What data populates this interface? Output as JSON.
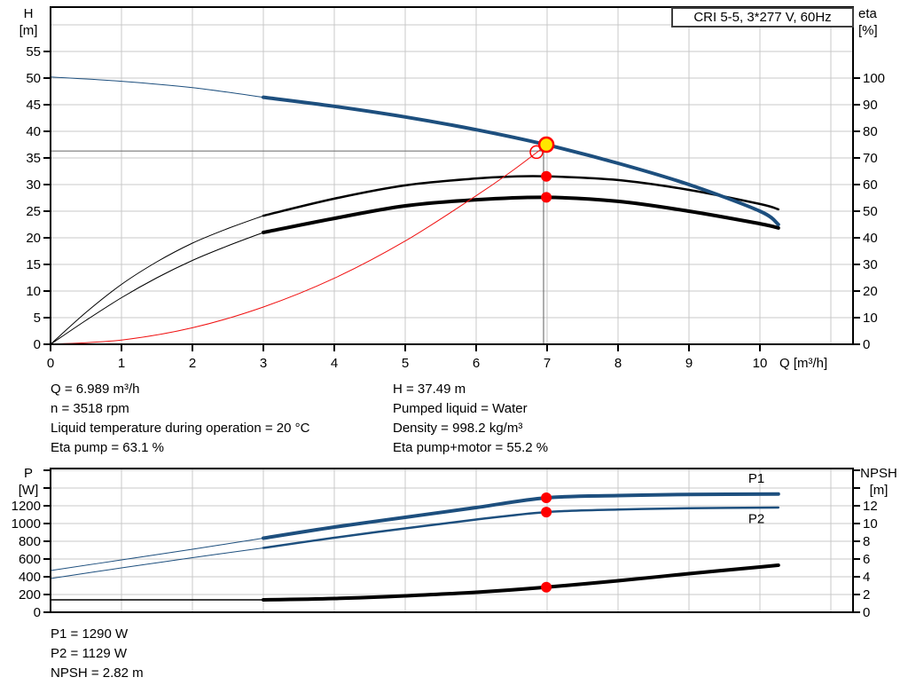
{
  "colors": {
    "curve_blue": "#1d4f7e",
    "curve_black": "#000000",
    "curve_red": "#f01010",
    "marker_red": "#ff0000",
    "marker_yellow": "#ffe600",
    "grid": "#c8c8c8",
    "frame": "#000000",
    "ref_line": "#787878",
    "text": "#000000"
  },
  "info_blocks": {
    "operating_point_left": [
      "Q = 6.989 m³/h",
      "n = 3518 rpm",
      "Liquid temperature during operation = 20 °C",
      "Eta pump = 63.1 %"
    ],
    "operating_point_right": [
      "H = 37.49 m",
      "Pumped liquid = Water",
      "Density = 998.2 kg/m³",
      "Eta pump+motor = 55.2 %"
    ],
    "power_block": [
      "P1 = 1290 W",
      "P2 = 1129 W",
      "NPSH = 2.82 m"
    ]
  },
  "chart_data": [
    {
      "name": "hq-eta-chart",
      "type": "line",
      "title": "CRI 5-5, 3*277 V, 60Hz",
      "x_axis": {
        "label": "Q [m³/h]",
        "min": 0,
        "max": 11.3125,
        "ticks": [
          {
            "v": 0,
            "t": "0"
          },
          {
            "v": 1,
            "t": "1"
          },
          {
            "v": 2,
            "t": "2"
          },
          {
            "v": 3,
            "t": "3"
          },
          {
            "v": 4,
            "t": "4"
          },
          {
            "v": 5,
            "t": "5"
          },
          {
            "v": 6,
            "t": "6"
          },
          {
            "v": 7,
            "t": "7"
          },
          {
            "v": 8,
            "t": "8"
          },
          {
            "v": 9,
            "t": "9"
          },
          {
            "v": 10,
            "t": "10"
          },
          {
            "v": 11,
            "t": ""
          }
        ],
        "marks_all": false
      },
      "left_axis": {
        "label": "H [m]",
        "label_lines": [
          "H",
          "[m]"
        ],
        "min": 0,
        "max": 63.333,
        "grid": true,
        "marks_all": false,
        "ticks": [
          {
            "v": 0,
            "t": "0"
          },
          {
            "v": 5,
            "t": "5"
          },
          {
            "v": 10,
            "t": "10"
          },
          {
            "v": 15,
            "t": "15"
          },
          {
            "v": 20,
            "t": "20"
          },
          {
            "v": 25,
            "t": "25"
          },
          {
            "v": 30,
            "t": "30"
          },
          {
            "v": 35,
            "t": "35"
          },
          {
            "v": 40,
            "t": "40"
          },
          {
            "v": 45,
            "t": "45"
          },
          {
            "v": 50,
            "t": "50"
          },
          {
            "v": 55,
            "t": "55"
          },
          {
            "v": 60,
            "t": ""
          }
        ]
      },
      "right_axis": {
        "label": "eta [%]",
        "label_lines": [
          "eta",
          "[%]"
        ],
        "min": 0,
        "max": 126.667,
        "grid": false,
        "marks_all": false,
        "ticks": [
          {
            "v": 0,
            "t": "0"
          },
          {
            "v": 10,
            "t": "10"
          },
          {
            "v": 20,
            "t": "20"
          },
          {
            "v": 30,
            "t": "30"
          },
          {
            "v": 40,
            "t": "40"
          },
          {
            "v": 50,
            "t": "50"
          },
          {
            "v": 60,
            "t": "60"
          },
          {
            "v": 70,
            "t": "70"
          },
          {
            "v": 80,
            "t": "80"
          },
          {
            "v": 90,
            "t": "90"
          },
          {
            "v": 100,
            "t": "100"
          }
        ]
      },
      "ref_lines": [
        {
          "type": "h",
          "axis": "left",
          "v": 36.3,
          "x1": 0,
          "x2": 6.95
        },
        {
          "type": "v",
          "axis": "left",
          "x": 6.95,
          "v1": 0,
          "v2": 37.3
        }
      ],
      "series": [
        {
          "name": "eta-pump-curve-low-flow",
          "axis": "right",
          "color": "curve_black",
          "width": 1,
          "points": [
            [
              0,
              0
            ],
            [
              0.5,
              12
            ],
            [
              1,
              22.5
            ],
            [
              1.5,
              31
            ],
            [
              2,
              38
            ],
            [
              2.5,
              43.5
            ],
            [
              3,
              48.3
            ]
          ]
        },
        {
          "name": "eta-pump-curve",
          "axis": "right",
          "color": "curve_black",
          "width": 2.5,
          "points": [
            [
              3,
              48.3
            ],
            [
              4,
              54.7
            ],
            [
              5,
              59.7
            ],
            [
              6,
              62.3
            ],
            [
              6.5,
              63
            ],
            [
              6.989,
              63.1
            ],
            [
              8,
              61.7
            ],
            [
              9,
              58
            ],
            [
              10,
              52.7
            ],
            [
              10.26,
              50.7
            ]
          ]
        },
        {
          "name": "eta-pump-motor-curve-low-flow",
          "axis": "right",
          "color": "curve_black",
          "width": 1,
          "points": [
            [
              0,
              0
            ],
            [
              0.5,
              9
            ],
            [
              1,
              17.5
            ],
            [
              1.5,
              25
            ],
            [
              2,
              31.5
            ],
            [
              2.5,
              37
            ],
            [
              3,
              42
            ]
          ]
        },
        {
          "name": "eta-pump-motor-curve",
          "axis": "right",
          "color": "curve_black",
          "width": 4,
          "points": [
            [
              3,
              42
            ],
            [
              4,
              47.3
            ],
            [
              5,
              52
            ],
            [
              6,
              54.3
            ],
            [
              6.989,
              55.2
            ],
            [
              8,
              53.7
            ],
            [
              9,
              50
            ],
            [
              10,
              45.3
            ],
            [
              10.26,
              43.7
            ]
          ]
        },
        {
          "name": "system-curve",
          "axis": "left",
          "color": "curve_red",
          "width": 1,
          "points": [
            [
              0,
              0
            ],
            [
              1,
              0.8
            ],
            [
              2,
              3.1
            ],
            [
              3,
              7.0
            ],
            [
              4,
              12.4
            ],
            [
              5,
              19.4
            ],
            [
              6,
              27.9
            ],
            [
              6.5,
              32.5
            ],
            [
              6.989,
              37.4
            ]
          ]
        },
        {
          "name": "head-curve-low-flow",
          "axis": "left",
          "color": "curve_blue",
          "width": 1,
          "points": [
            [
              0,
              50.2
            ],
            [
              1,
              49.4
            ],
            [
              2,
              48.2
            ],
            [
              3,
              46.4
            ]
          ]
        },
        {
          "name": "head-curve",
          "axis": "left",
          "color": "curve_blue",
          "width": 4,
          "points": [
            [
              3,
              46.4
            ],
            [
              4,
              44.7
            ],
            [
              5,
              42.7
            ],
            [
              6,
              40.3
            ],
            [
              6.989,
              37.49
            ],
            [
              8,
              34.0
            ],
            [
              9,
              30.0
            ],
            [
              10,
              25.0
            ],
            [
              10.26,
              22.5
            ]
          ]
        }
      ],
      "markers": [
        {
          "name": "requested-duty-point",
          "type": "open",
          "x": 6.85,
          "v": 36.1,
          "axis": "left",
          "r": 7
        },
        {
          "name": "operating-point",
          "type": "duty",
          "x": 6.989,
          "v": 37.49,
          "axis": "left",
          "r": 8
        },
        {
          "name": "eta-pump-point",
          "type": "dot",
          "x": 6.989,
          "v": 63.1,
          "axis": "right",
          "r": 6
        },
        {
          "name": "eta-pump-motor-point",
          "type": "dot",
          "x": 6.989,
          "v": 55.2,
          "axis": "right",
          "r": 6
        }
      ],
      "labels": []
    },
    {
      "name": "power-npsh-chart",
      "type": "line",
      "title": "",
      "x_axis": {
        "label": "",
        "min": 0,
        "max": 11.3125,
        "ticks": [
          {
            "v": 1,
            "t": ""
          },
          {
            "v": 2,
            "t": ""
          },
          {
            "v": 3,
            "t": ""
          },
          {
            "v": 4,
            "t": ""
          },
          {
            "v": 5,
            "t": ""
          },
          {
            "v": 6,
            "t": ""
          },
          {
            "v": 7,
            "t": ""
          },
          {
            "v": 8,
            "t": ""
          },
          {
            "v": 9,
            "t": ""
          },
          {
            "v": 10,
            "t": ""
          },
          {
            "v": 11,
            "t": ""
          }
        ],
        "marks_all": false
      },
      "left_axis": {
        "label": "P [W]",
        "label_lines": [
          "P",
          "[W]"
        ],
        "min": 0,
        "max": 1620,
        "grid": true,
        "marks_all": true,
        "ticks": [
          {
            "v": 0,
            "t": "0"
          },
          {
            "v": 200,
            "t": "200"
          },
          {
            "v": 400,
            "t": "400"
          },
          {
            "v": 600,
            "t": "600"
          },
          {
            "v": 800,
            "t": "800"
          },
          {
            "v": 1000,
            "t": "1000"
          },
          {
            "v": 1200,
            "t": "1200"
          },
          {
            "v": 1400,
            "t": ""
          },
          {
            "v": 1600,
            "t": ""
          }
        ]
      },
      "right_axis": {
        "label": "NPSH [m]",
        "label_lines": [
          "NPSH",
          "[m]"
        ],
        "min": 0,
        "max": 16.2,
        "grid": false,
        "marks_all": true,
        "ticks": [
          {
            "v": 0,
            "t": "0"
          },
          {
            "v": 2,
            "t": "2"
          },
          {
            "v": 4,
            "t": "4"
          },
          {
            "v": 6,
            "t": "6"
          },
          {
            "v": 8,
            "t": "8"
          },
          {
            "v": 10,
            "t": "10"
          },
          {
            "v": 12,
            "t": "12"
          },
          {
            "v": 14,
            "t": ""
          },
          {
            "v": 16,
            "t": ""
          }
        ]
      },
      "ref_lines": [],
      "series": [
        {
          "name": "p2-curve-low-flow",
          "axis": "left",
          "color": "curve_blue",
          "width": 1,
          "points": [
            [
              0,
              380
            ],
            [
              1,
              500
            ],
            [
              2,
              615
            ],
            [
              3,
              725
            ]
          ]
        },
        {
          "name": "p2-curve",
          "axis": "left",
          "color": "curve_blue",
          "width": 2.5,
          "points": [
            [
              3,
              725
            ],
            [
              4,
              840
            ],
            [
              5,
              945
            ],
            [
              6,
              1045
            ],
            [
              6.989,
              1129
            ],
            [
              8,
              1158
            ],
            [
              9,
              1172
            ],
            [
              10.26,
              1180
            ]
          ]
        },
        {
          "name": "p1-curve-low-flow",
          "axis": "left",
          "color": "curve_blue",
          "width": 1,
          "points": [
            [
              0,
              470
            ],
            [
              1,
              590
            ],
            [
              2,
              710
            ],
            [
              3,
              835
            ]
          ]
        },
        {
          "name": "p1-curve",
          "axis": "left",
          "color": "curve_blue",
          "width": 4,
          "points": [
            [
              3,
              835
            ],
            [
              4,
              960
            ],
            [
              5,
              1070
            ],
            [
              6,
              1180
            ],
            [
              6.989,
              1290
            ],
            [
              8,
              1315
            ],
            [
              9,
              1328
            ],
            [
              10.26,
              1332
            ]
          ]
        },
        {
          "name": "npsh-curve-low-flow",
          "axis": "right",
          "color": "curve_black",
          "width": 1.5,
          "points": [
            [
              0,
              1.4
            ],
            [
              1.5,
              1.4
            ],
            [
              3,
              1.4
            ]
          ]
        },
        {
          "name": "npsh-curve",
          "axis": "right",
          "color": "curve_black",
          "width": 4,
          "points": [
            [
              3,
              1.4
            ],
            [
              4,
              1.55
            ],
            [
              5,
              1.85
            ],
            [
              6,
              2.25
            ],
            [
              6.989,
              2.82
            ],
            [
              8,
              3.55
            ],
            [
              9,
              4.35
            ],
            [
              10,
              5.1
            ],
            [
              10.26,
              5.3
            ]
          ]
        }
      ],
      "markers": [
        {
          "name": "p1-point",
          "type": "dot",
          "x": 6.989,
          "v": 1290,
          "axis": "left",
          "r": 6
        },
        {
          "name": "p2-point",
          "type": "dot",
          "x": 6.989,
          "v": 1129,
          "axis": "left",
          "r": 6
        },
        {
          "name": "npsh-point",
          "type": "dot",
          "x": 6.989,
          "v": 2.82,
          "axis": "right",
          "r": 6
        }
      ],
      "labels": [
        {
          "text": "P1",
          "x": 9.95,
          "v": 1510,
          "axis": "left",
          "color": "curve_blue"
        },
        {
          "text": "P2",
          "x": 9.95,
          "v": 1055,
          "axis": "left",
          "color": "curve_blue"
        }
      ]
    }
  ]
}
